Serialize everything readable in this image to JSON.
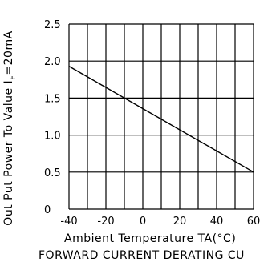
{
  "chart_data": {
    "type": "line",
    "title": "FORWARD CURRENT DERATING CU",
    "xlabel": "Ambient Temperature TA(°C)",
    "ylabel": "Out Put Power To Value I",
    "ylabel_subscript": "F",
    "ylabel_suffix": "=20mA",
    "xlim": [
      -40,
      60
    ],
    "ylim": [
      0,
      2.5
    ],
    "x_ticks": [
      -40,
      -20,
      0,
      20,
      40,
      60
    ],
    "x_tick_labels": [
      "-40",
      "-20",
      "0",
      "20",
      "40",
      "60"
    ],
    "y_ticks": [
      0,
      0.5,
      1.0,
      1.5,
      2.0,
      2.5
    ],
    "y_tick_labels": [
      "0",
      "0.5",
      "1.0",
      "1.5",
      "2.0",
      "2.5"
    ],
    "x_grid": [
      -40,
      -30,
      -20,
      -10,
      0,
      10,
      20,
      30,
      40,
      50,
      60
    ],
    "y_grid": [
      0,
      0.5,
      1.0,
      1.5,
      2.0,
      2.5
    ],
    "grid": true,
    "series": [
      {
        "x": [
          -40,
          60
        ],
        "y": [
          1.93,
          0.5
        ]
      }
    ]
  }
}
